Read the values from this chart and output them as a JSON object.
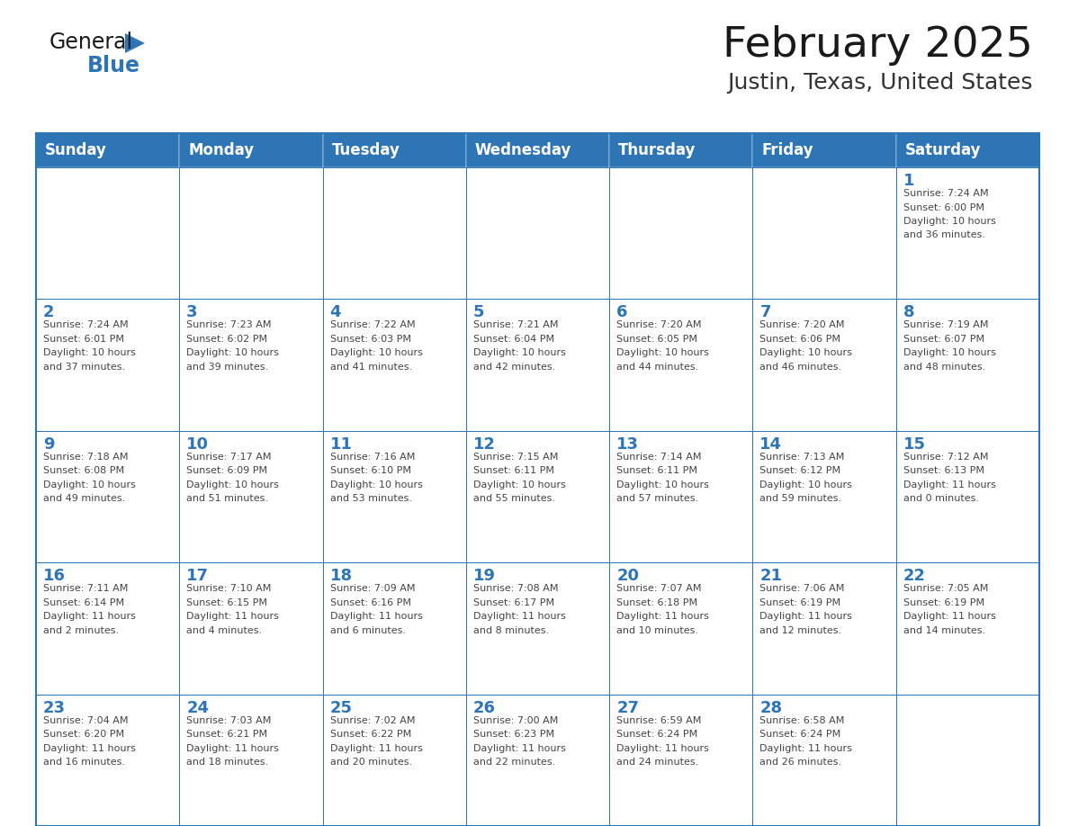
{
  "title": "February 2025",
  "subtitle": "Justin, Texas, United States",
  "header_color": "#2E75B6",
  "header_text_color": "#FFFFFF",
  "cell_bg_color": "#FFFFFF",
  "border_color": "#2E75B6",
  "day_number_color": "#2E75B6",
  "cell_text_color": "#444444",
  "days_of_week": [
    "Sunday",
    "Monday",
    "Tuesday",
    "Wednesday",
    "Thursday",
    "Friday",
    "Saturday"
  ],
  "weeks": [
    [
      {
        "day": 0,
        "text": ""
      },
      {
        "day": 0,
        "text": ""
      },
      {
        "day": 0,
        "text": ""
      },
      {
        "day": 0,
        "text": ""
      },
      {
        "day": 0,
        "text": ""
      },
      {
        "day": 0,
        "text": ""
      },
      {
        "day": 1,
        "text": "Sunrise: 7:24 AM\nSunset: 6:00 PM\nDaylight: 10 hours\nand 36 minutes."
      }
    ],
    [
      {
        "day": 2,
        "text": "Sunrise: 7:24 AM\nSunset: 6:01 PM\nDaylight: 10 hours\nand 37 minutes."
      },
      {
        "day": 3,
        "text": "Sunrise: 7:23 AM\nSunset: 6:02 PM\nDaylight: 10 hours\nand 39 minutes."
      },
      {
        "day": 4,
        "text": "Sunrise: 7:22 AM\nSunset: 6:03 PM\nDaylight: 10 hours\nand 41 minutes."
      },
      {
        "day": 5,
        "text": "Sunrise: 7:21 AM\nSunset: 6:04 PM\nDaylight: 10 hours\nand 42 minutes."
      },
      {
        "day": 6,
        "text": "Sunrise: 7:20 AM\nSunset: 6:05 PM\nDaylight: 10 hours\nand 44 minutes."
      },
      {
        "day": 7,
        "text": "Sunrise: 7:20 AM\nSunset: 6:06 PM\nDaylight: 10 hours\nand 46 minutes."
      },
      {
        "day": 8,
        "text": "Sunrise: 7:19 AM\nSunset: 6:07 PM\nDaylight: 10 hours\nand 48 minutes."
      }
    ],
    [
      {
        "day": 9,
        "text": "Sunrise: 7:18 AM\nSunset: 6:08 PM\nDaylight: 10 hours\nand 49 minutes."
      },
      {
        "day": 10,
        "text": "Sunrise: 7:17 AM\nSunset: 6:09 PM\nDaylight: 10 hours\nand 51 minutes."
      },
      {
        "day": 11,
        "text": "Sunrise: 7:16 AM\nSunset: 6:10 PM\nDaylight: 10 hours\nand 53 minutes."
      },
      {
        "day": 12,
        "text": "Sunrise: 7:15 AM\nSunset: 6:11 PM\nDaylight: 10 hours\nand 55 minutes."
      },
      {
        "day": 13,
        "text": "Sunrise: 7:14 AM\nSunset: 6:11 PM\nDaylight: 10 hours\nand 57 minutes."
      },
      {
        "day": 14,
        "text": "Sunrise: 7:13 AM\nSunset: 6:12 PM\nDaylight: 10 hours\nand 59 minutes."
      },
      {
        "day": 15,
        "text": "Sunrise: 7:12 AM\nSunset: 6:13 PM\nDaylight: 11 hours\nand 0 minutes."
      }
    ],
    [
      {
        "day": 16,
        "text": "Sunrise: 7:11 AM\nSunset: 6:14 PM\nDaylight: 11 hours\nand 2 minutes."
      },
      {
        "day": 17,
        "text": "Sunrise: 7:10 AM\nSunset: 6:15 PM\nDaylight: 11 hours\nand 4 minutes."
      },
      {
        "day": 18,
        "text": "Sunrise: 7:09 AM\nSunset: 6:16 PM\nDaylight: 11 hours\nand 6 minutes."
      },
      {
        "day": 19,
        "text": "Sunrise: 7:08 AM\nSunset: 6:17 PM\nDaylight: 11 hours\nand 8 minutes."
      },
      {
        "day": 20,
        "text": "Sunrise: 7:07 AM\nSunset: 6:18 PM\nDaylight: 11 hours\nand 10 minutes."
      },
      {
        "day": 21,
        "text": "Sunrise: 7:06 AM\nSunset: 6:19 PM\nDaylight: 11 hours\nand 12 minutes."
      },
      {
        "day": 22,
        "text": "Sunrise: 7:05 AM\nSunset: 6:19 PM\nDaylight: 11 hours\nand 14 minutes."
      }
    ],
    [
      {
        "day": 23,
        "text": "Sunrise: 7:04 AM\nSunset: 6:20 PM\nDaylight: 11 hours\nand 16 minutes."
      },
      {
        "day": 24,
        "text": "Sunrise: 7:03 AM\nSunset: 6:21 PM\nDaylight: 11 hours\nand 18 minutes."
      },
      {
        "day": 25,
        "text": "Sunrise: 7:02 AM\nSunset: 6:22 PM\nDaylight: 11 hours\nand 20 minutes."
      },
      {
        "day": 26,
        "text": "Sunrise: 7:00 AM\nSunset: 6:23 PM\nDaylight: 11 hours\nand 22 minutes."
      },
      {
        "day": 27,
        "text": "Sunrise: 6:59 AM\nSunset: 6:24 PM\nDaylight: 11 hours\nand 24 minutes."
      },
      {
        "day": 28,
        "text": "Sunrise: 6:58 AM\nSunset: 6:24 PM\nDaylight: 11 hours\nand 26 minutes."
      },
      {
        "day": 0,
        "text": ""
      }
    ]
  ],
  "logo_general_color": "#1a1a1a",
  "logo_blue_color": "#2E75B6",
  "title_color": "#1a1a1a",
  "subtitle_color": "#333333"
}
